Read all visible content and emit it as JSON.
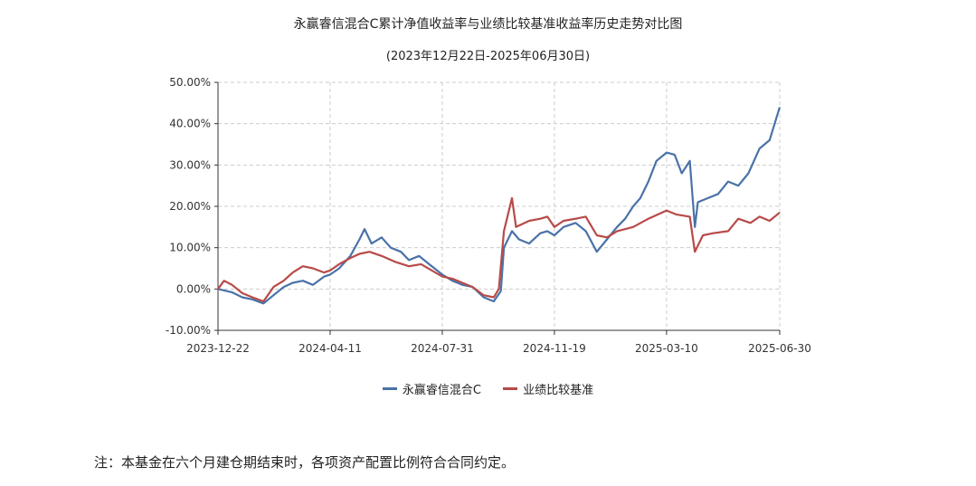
{
  "title": "永赢睿信混合C累计净值收益率与业绩比较基准收益率历史走势对比图",
  "subtitle": "(2023年12月22日-2025年06月30日)",
  "footnote": "注：本基金在六个月建仓期结束时，各项资产配置比例符合合同约定。",
  "colors": {
    "fund": "#4a72a8",
    "benchmark": "#b84a48",
    "grid": "#cccccc",
    "axis": "#333333"
  },
  "chart_data": {
    "type": "line",
    "grid": true,
    "legend_position": "bottom",
    "ylim": [
      -10,
      50
    ],
    "yticks": [
      -10,
      0,
      10,
      20,
      30,
      40,
      50
    ],
    "ytick_labels": [
      "-10.00%",
      "0.00%",
      "10.00%",
      "20.00%",
      "30.00%",
      "40.00%",
      "50.00%"
    ],
    "xlim": [
      "2023-12-22",
      "2025-06-30"
    ],
    "xticks": [
      "2023-12-22",
      "2024-04-11",
      "2024-07-31",
      "2024-11-19",
      "2025-03-10",
      "2025-06-30"
    ],
    "series": [
      {
        "name": "永赢睿信混合C",
        "color": "#4a72a8",
        "points": [
          [
            "2023-12-22",
            0.0
          ],
          [
            "2024-01-05",
            -0.8
          ],
          [
            "2024-01-15",
            -2.0
          ],
          [
            "2024-01-25",
            -2.5
          ],
          [
            "2024-02-05",
            -3.5
          ],
          [
            "2024-02-15",
            -1.5
          ],
          [
            "2024-02-25",
            0.5
          ],
          [
            "2024-03-05",
            1.5
          ],
          [
            "2024-03-15",
            2.0
          ],
          [
            "2024-03-25",
            1.0
          ],
          [
            "2024-04-05",
            3.0
          ],
          [
            "2024-04-11",
            3.5
          ],
          [
            "2024-04-20",
            5.0
          ],
          [
            "2024-05-01",
            8.0
          ],
          [
            "2024-05-10",
            12.0
          ],
          [
            "2024-05-15",
            14.5
          ],
          [
            "2024-05-22",
            11.0
          ],
          [
            "2024-06-01",
            12.5
          ],
          [
            "2024-06-10",
            10.0
          ],
          [
            "2024-06-20",
            9.0
          ],
          [
            "2024-06-28",
            7.0
          ],
          [
            "2024-07-08",
            8.0
          ],
          [
            "2024-07-18",
            6.0
          ],
          [
            "2024-07-31",
            3.5
          ],
          [
            "2024-08-10",
            2.0
          ],
          [
            "2024-08-20",
            1.0
          ],
          [
            "2024-08-30",
            0.5
          ],
          [
            "2024-09-10",
            -2.0
          ],
          [
            "2024-09-20",
            -3.0
          ],
          [
            "2024-09-27",
            -0.5
          ],
          [
            "2024-09-30",
            10.0
          ],
          [
            "2024-10-08",
            14.0
          ],
          [
            "2024-10-15",
            12.0
          ],
          [
            "2024-10-25",
            11.0
          ],
          [
            "2024-11-05",
            13.5
          ],
          [
            "2024-11-12",
            14.0
          ],
          [
            "2024-11-19",
            13.0
          ],
          [
            "2024-11-28",
            15.0
          ],
          [
            "2024-12-10",
            16.0
          ],
          [
            "2024-12-20",
            14.0
          ],
          [
            "2024-12-31",
            9.0
          ],
          [
            "2025-01-10",
            12.0
          ],
          [
            "2025-01-20",
            15.0
          ],
          [
            "2025-01-28",
            17.0
          ],
          [
            "2025-02-05",
            20.0
          ],
          [
            "2025-02-12",
            22.0
          ],
          [
            "2025-02-20",
            26.0
          ],
          [
            "2025-02-28",
            31.0
          ],
          [
            "2025-03-10",
            33.0
          ],
          [
            "2025-03-18",
            32.5
          ],
          [
            "2025-03-25",
            28.0
          ],
          [
            "2025-04-02",
            31.0
          ],
          [
            "2025-04-07",
            15.0
          ],
          [
            "2025-04-10",
            21.0
          ],
          [
            "2025-04-20",
            22.0
          ],
          [
            "2025-04-30",
            23.0
          ],
          [
            "2025-05-10",
            26.0
          ],
          [
            "2025-05-20",
            25.0
          ],
          [
            "2025-05-30",
            28.0
          ],
          [
            "2025-06-10",
            34.0
          ],
          [
            "2025-06-20",
            36.0
          ],
          [
            "2025-06-30",
            44.0
          ]
        ]
      },
      {
        "name": "业绩比较基准",
        "color": "#b84a48",
        "points": [
          [
            "2023-12-22",
            0.0
          ],
          [
            "2023-12-28",
            2.0
          ],
          [
            "2024-01-05",
            1.0
          ],
          [
            "2024-01-15",
            -1.0
          ],
          [
            "2024-01-25",
            -2.0
          ],
          [
            "2024-02-05",
            -3.0
          ],
          [
            "2024-02-15",
            0.5
          ],
          [
            "2024-02-25",
            2.0
          ],
          [
            "2024-03-05",
            4.0
          ],
          [
            "2024-03-15",
            5.5
          ],
          [
            "2024-03-25",
            5.0
          ],
          [
            "2024-04-05",
            4.0
          ],
          [
            "2024-04-11",
            4.5
          ],
          [
            "2024-04-20",
            6.0
          ],
          [
            "2024-05-01",
            7.5
          ],
          [
            "2024-05-10",
            8.5
          ],
          [
            "2024-05-20",
            9.0
          ],
          [
            "2024-06-01",
            8.0
          ],
          [
            "2024-06-15",
            6.5
          ],
          [
            "2024-06-28",
            5.5
          ],
          [
            "2024-07-10",
            6.0
          ],
          [
            "2024-07-31",
            3.0
          ],
          [
            "2024-08-10",
            2.5
          ],
          [
            "2024-08-20",
            1.5
          ],
          [
            "2024-08-30",
            0.5
          ],
          [
            "2024-09-10",
            -1.5
          ],
          [
            "2024-09-20",
            -2.0
          ],
          [
            "2024-09-25",
            0.0
          ],
          [
            "2024-09-30",
            14.0
          ],
          [
            "2024-10-08",
            22.0
          ],
          [
            "2024-10-12",
            15.0
          ],
          [
            "2024-10-25",
            16.5
          ],
          [
            "2024-11-05",
            17.0
          ],
          [
            "2024-11-12",
            17.5
          ],
          [
            "2024-11-19",
            15.0
          ],
          [
            "2024-11-28",
            16.5
          ],
          [
            "2024-12-10",
            17.0
          ],
          [
            "2024-12-20",
            17.5
          ],
          [
            "2024-12-31",
            13.0
          ],
          [
            "2025-01-10",
            12.5
          ],
          [
            "2025-01-20",
            14.0
          ],
          [
            "2025-02-05",
            15.0
          ],
          [
            "2025-02-20",
            17.0
          ],
          [
            "2025-03-01",
            18.0
          ],
          [
            "2025-03-10",
            19.0
          ],
          [
            "2025-03-20",
            18.0
          ],
          [
            "2025-04-02",
            17.5
          ],
          [
            "2025-04-07",
            9.0
          ],
          [
            "2025-04-15",
            13.0
          ],
          [
            "2025-04-25",
            13.5
          ],
          [
            "2025-05-10",
            14.0
          ],
          [
            "2025-05-20",
            17.0
          ],
          [
            "2025-06-01",
            16.0
          ],
          [
            "2025-06-10",
            17.5
          ],
          [
            "2025-06-20",
            16.5
          ],
          [
            "2025-06-30",
            18.5
          ]
        ]
      }
    ]
  }
}
